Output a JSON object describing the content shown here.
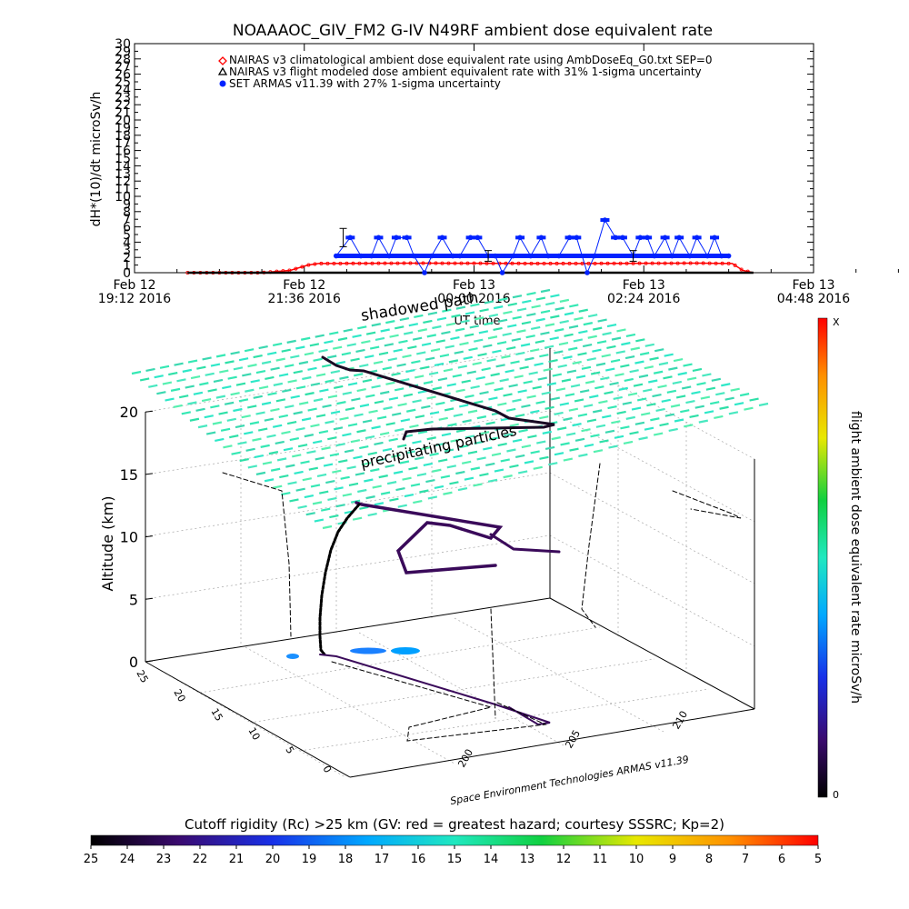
{
  "title": "NOAAAOC_GIV_FM2 G-IV    N49RF  ambient dose equivalent rate",
  "top_chart": {
    "ylabel": "dH*(10)/dt microSv/h",
    "xlabel": "UT time",
    "legend": [
      {
        "text": "NAIRAS v3 climatological ambient dose equivalent rate using AmbDoseEq_G0.txt SEP=0",
        "color": "#ff0000",
        "marker": "diamond"
      },
      {
        "text": "NAIRAS v3 flight modeled dose ambient equivalent rate with 31% 1-sigma uncertainty",
        "color": "#000000",
        "marker": "triangle"
      },
      {
        "text": "SET ARMAS v11.39 with 27% 1-sigma uncertainty",
        "color": "#0022ff",
        "marker": "circle"
      }
    ],
    "x_ticks": [
      {
        "line1": "Feb 12",
        "line2": "19:12 2016"
      },
      {
        "line1": "Feb 12",
        "line2": "21:36 2016"
      },
      {
        "line1": "Feb 13",
        "line2": "00:00 2016"
      },
      {
        "line1": "Feb 13",
        "line2": "02:24 2016"
      },
      {
        "line1": "Feb 13",
        "line2": "04:48 2016"
      }
    ],
    "y_ticks": [
      "0",
      "2",
      "4",
      "6",
      "8",
      "10",
      "12",
      "14",
      "16",
      "18",
      "20",
      "22",
      "24",
      "26",
      "28",
      "30"
    ],
    "y_minor_ticks": [
      "0",
      "1",
      "2",
      "3",
      "4",
      "5",
      "6",
      "7",
      "8",
      "9",
      "10",
      "11",
      "12",
      "13",
      "14",
      "15",
      "16",
      "17",
      "18",
      "19",
      "20",
      "21",
      "22",
      "23",
      "24",
      "25",
      "26",
      "27",
      "28",
      "29",
      "30"
    ]
  },
  "chart_data": [
    {
      "type": "line",
      "title": "NOAAAOC_GIV_FM2 G-IV    N49RF  ambient dose equivalent rate",
      "xlabel": "UT time",
      "ylabel": "dH*(10)/dt microSv/h",
      "x_unit": "hours since Feb 12 19:12 UT 2016",
      "xlim": [
        0,
        9.6
      ],
      "ylim": [
        0,
        30
      ],
      "series": [
        {
          "name": "NAIRAS v3 climatological ambient dose equivalent rate using AmbDoseEq_G0.txt SEP=0",
          "color": "#ff0000",
          "x": [
            0.75,
            1.8,
            2.2,
            2.45,
            2.6,
            4.0,
            6.0,
            8.0,
            8.45,
            8.6,
            8.75
          ],
          "y": [
            0,
            0,
            0.3,
            1.0,
            1.2,
            1.25,
            1.2,
            1.25,
            1.2,
            0.3,
            0
          ]
        },
        {
          "name": "NAIRAS v3 flight modeled dose ambient equivalent rate with 31% 1-sigma uncertainty",
          "color": "#000000",
          "x": [
            0.75,
            2.0,
            4.0,
            6.0,
            8.75
          ],
          "y": [
            0,
            0,
            0,
            0,
            0
          ]
        },
        {
          "name": "SET ARMAS v11.39 with 27% 1-sigma uncertainty",
          "color": "#0022ff",
          "x": [
            2.85,
            3.05,
            3.2,
            3.35,
            3.45,
            3.6,
            3.7,
            3.85,
            3.95,
            4.1,
            4.2,
            4.35,
            4.5,
            4.6,
            4.75,
            4.85,
            5.0,
            5.1,
            5.2,
            5.35,
            5.45,
            5.6,
            5.75,
            5.85,
            6.0,
            6.15,
            6.25,
            6.4,
            6.5,
            6.65,
            6.8,
            6.9,
            7.05,
            7.15,
            7.25,
            7.35,
            7.5,
            7.6,
            7.7,
            7.85,
            7.95,
            8.1,
            8.2,
            8.3,
            8.4
          ],
          "y": [
            2.2,
            4.6,
            2.2,
            2.2,
            4.6,
            2.2,
            4.6,
            4.6,
            2.2,
            0,
            2.2,
            4.6,
            2.2,
            2.2,
            4.6,
            4.6,
            2.2,
            2.2,
            0,
            2.2,
            4.6,
            2.2,
            4.6,
            2.2,
            2.2,
            4.6,
            4.6,
            0,
            2.2,
            6.9,
            4.6,
            4.6,
            2.2,
            4.6,
            4.6,
            2.2,
            4.6,
            2.2,
            4.6,
            2.2,
            4.6,
            2.2,
            4.6,
            2.2,
            2.2
          ],
          "error_bars": [
            {
              "x": 2.95,
              "y": 4.6,
              "err": 1.2
            },
            {
              "x": 5.0,
              "y": 2.2,
              "err": 0.7
            },
            {
              "x": 7.05,
              "y": 2.2,
              "err": 0.7
            }
          ]
        }
      ]
    },
    {
      "type": "scatter",
      "xlabel": "",
      "ylabel": "Altitude (km)",
      "zlabel": "flight ambient dose equivalent rate microSv/h",
      "z_ticks": [
        "0",
        "5",
        "10",
        "15",
        "20"
      ],
      "y_ticks": [
        "0",
        "5",
        "10",
        "15",
        "20",
        "25"
      ],
      "x_ticks": [
        "200",
        "205",
        "210"
      ],
      "annotations": [
        "shadowed path",
        "precipitating particles"
      ],
      "credit": "Space Environment Technologies ARMAS v11.39",
      "colorbar": {
        "label": "flight ambient dose equivalent rate microSv/h",
        "max_label": "X",
        "min_label": "0"
      },
      "rigidity_bar": {
        "label": "Cutoff rigidity (Rc) >25 km (GV: red = greatest hazard; courtesy SSSRC; Kp=2)",
        "ticks": [
          "25",
          "24",
          "23",
          "22",
          "21",
          "20",
          "19",
          "18",
          "17",
          "16",
          "15",
          "14",
          "13",
          "12",
          "11",
          "10",
          "9",
          "8",
          "7",
          "6",
          "5"
        ]
      }
    }
  ],
  "colors": {
    "nairas_clim": "#ff0000",
    "nairas_flight": "#000000",
    "armas": "#0022ff",
    "precip_particles": "#35e8b4",
    "flight_track": "#2a0a3e"
  }
}
